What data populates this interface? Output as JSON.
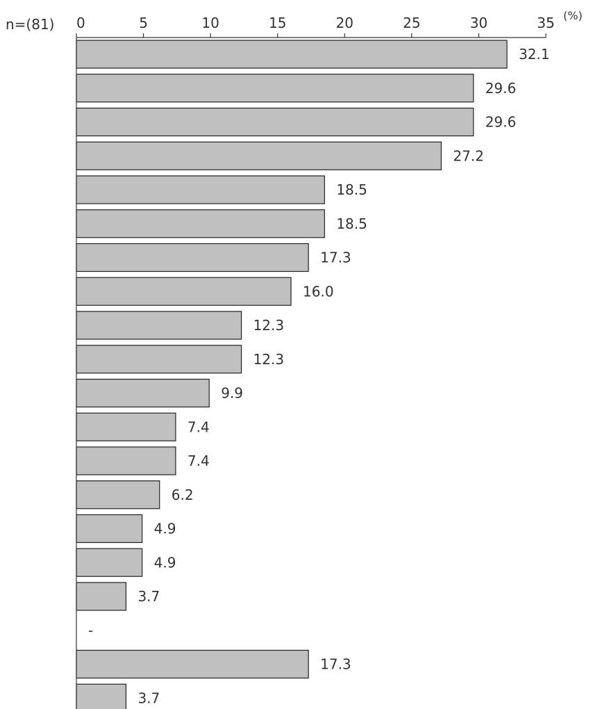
{
  "chart_data": {
    "type": "bar",
    "orientation": "horizontal",
    "sample_size_label": "n=(81)",
    "unit_label": "(%)",
    "xlim": [
      0,
      35
    ],
    "x_ticks": [
      0,
      5,
      10,
      15,
      20,
      25,
      30,
      35
    ],
    "values": [
      32.1,
      29.6,
      29.6,
      27.2,
      18.5,
      18.5,
      17.3,
      16.0,
      12.3,
      12.3,
      9.9,
      7.4,
      7.4,
      6.2,
      4.9,
      4.9,
      3.7,
      0,
      17.3,
      3.7
    ],
    "value_labels": [
      "32.1",
      "29.6",
      "29.6",
      "27.2",
      "18.5",
      "18.5",
      "17.3",
      "16.0",
      "12.3",
      "12.3",
      "9.9",
      "7.4",
      "7.4",
      "6.2",
      "4.9",
      "4.9",
      "3.7",
      "-",
      "17.3",
      "3.7"
    ],
    "bar_color": "#c0c0c0",
    "grid": false
  }
}
